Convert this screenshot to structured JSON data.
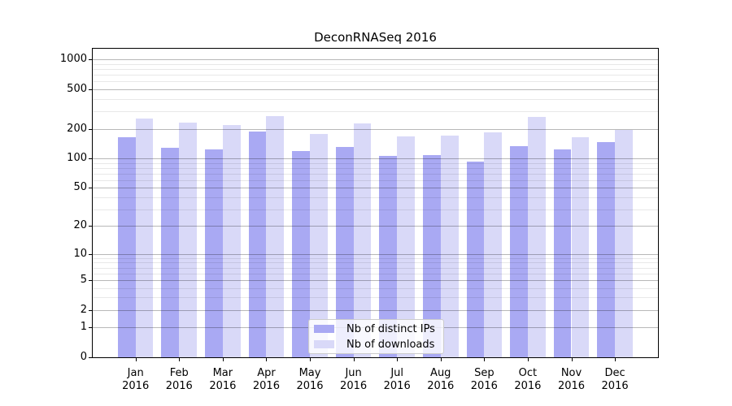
{
  "title": "DeconRNASeq 2016",
  "legend": {
    "items": [
      {
        "label": "Nb of distinct IPs",
        "color": "#a9a9f3"
      },
      {
        "label": "Nb of downloads",
        "color": "#d9d9f8"
      }
    ]
  },
  "axis": {
    "y_tick_labels": [
      "0",
      "1",
      "2",
      "5",
      "10",
      "20",
      "50",
      "100",
      "200",
      "500",
      "1000"
    ],
    "x_tick_labels_line1": [
      "Jan",
      "Feb",
      "Mar",
      "Apr",
      "May",
      "Jun",
      "Jul",
      "Aug",
      "Sep",
      "Oct",
      "Nov",
      "Dec"
    ],
    "x_tick_labels_line2": [
      "2016",
      "2016",
      "2016",
      "2016",
      "2016",
      "2016",
      "2016",
      "2016",
      "2016",
      "2016",
      "2016",
      "2016"
    ]
  },
  "chart_data": {
    "type": "bar",
    "title": "DeconRNASeq 2016",
    "categories": [
      "Jan 2016",
      "Feb 2016",
      "Mar 2016",
      "Apr 2016",
      "May 2016",
      "Jun 2016",
      "Jul 2016",
      "Aug 2016",
      "Sep 2016",
      "Oct 2016",
      "Nov 2016",
      "Dec 2016"
    ],
    "series": [
      {
        "name": "Nb of distinct IPs",
        "color": "#a9a9f3",
        "values": [
          163,
          129,
          124,
          188,
          119,
          131,
          106,
          108,
          92,
          134,
          123,
          146
        ]
      },
      {
        "name": "Nb of downloads",
        "color": "#d9d9f8",
        "values": [
          255,
          229,
          217,
          270,
          178,
          226,
          167,
          172,
          185,
          265,
          163,
          193
        ]
      }
    ],
    "yscale": "log1p",
    "ylim": [
      0,
      1000
    ],
    "y_ticks": [
      0,
      1,
      2,
      5,
      10,
      20,
      50,
      100,
      200,
      500,
      1000
    ],
    "y_minor_gridlines": [
      3,
      4,
      6,
      7,
      8,
      9,
      30,
      40,
      60,
      70,
      80,
      90,
      300,
      400,
      600,
      700,
      800,
      900
    ],
    "grid": true,
    "legend_position": "lower center"
  }
}
